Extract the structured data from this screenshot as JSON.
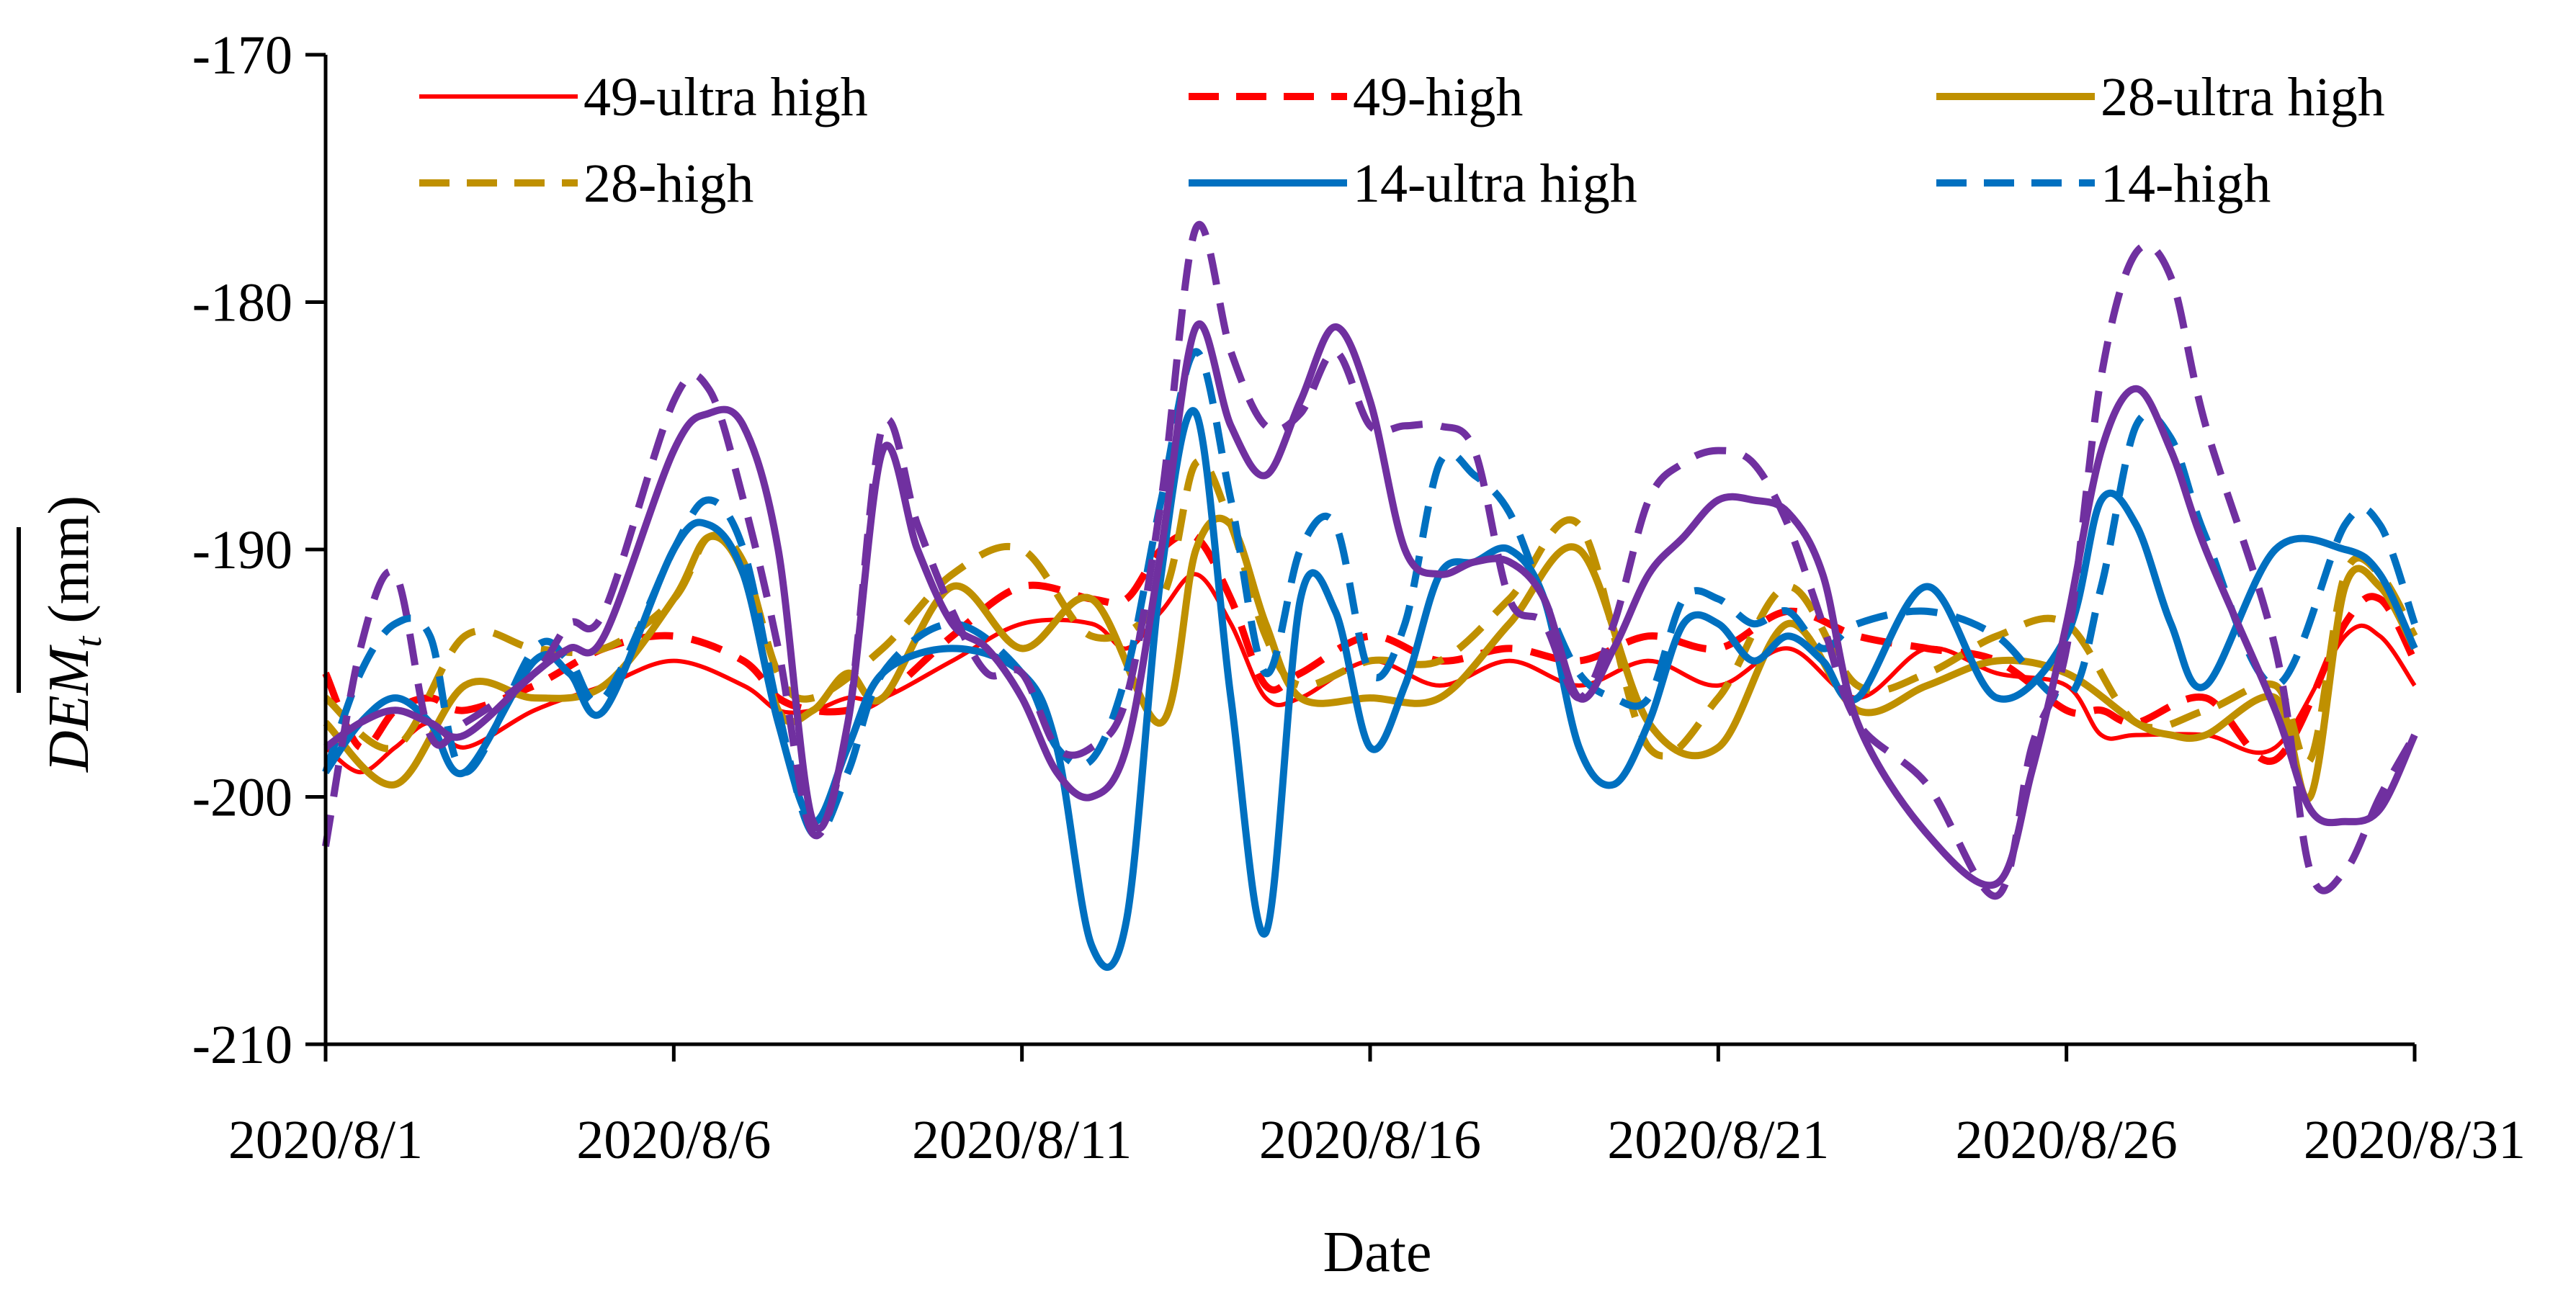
{
  "chart_data": {
    "type": "line",
    "xlabel": "Date",
    "ylabel_main": "DEM",
    "ylabel_sub": "t",
    "ylabel_unit": "(mm)",
    "ylim": [
      -210,
      -170
    ],
    "yticks": [
      -170,
      -180,
      -190,
      -200,
      -210
    ],
    "ytick_labels": [
      "-170",
      "-180",
      "-190",
      "-200",
      "-210"
    ],
    "xlim": [
      0,
      30
    ],
    "xticks": [
      0,
      5,
      10,
      15,
      20,
      25,
      30
    ],
    "xtick_labels": [
      "2020/8/1",
      "2020/8/6",
      "2020/8/11",
      "2020/8/16",
      "2020/8/21",
      "2020/8/26",
      "2020/8/31"
    ],
    "legend_position": "top",
    "series": [
      {
        "name": "49-ultra high",
        "color": "#FF0000",
        "dash": "solid",
        "width": "thin",
        "x": [
          0,
          0.5,
          1,
          1.5,
          2,
          3,
          4,
          5,
          6,
          6.5,
          7,
          7.5,
          8,
          9,
          10,
          11,
          11.5,
          12,
          12.5,
          13,
          13.5,
          14,
          15,
          16,
          17,
          18,
          19,
          20,
          21,
          22,
          23,
          24,
          25,
          25.5,
          26,
          27,
          28,
          29,
          29.5,
          30
        ],
        "values": [
          -198,
          -199,
          -198,
          -197,
          -198,
          -196.5,
          -195.5,
          -194.5,
          -195.5,
          -196.5,
          -196.5,
          -196,
          -196,
          -194.5,
          -193,
          -193,
          -194,
          -192.5,
          -191,
          -193,
          -196,
          -196,
          -194.5,
          -195.5,
          -194.5,
          -195.5,
          -194.5,
          -195.5,
          -194,
          -196,
          -194,
          -195,
          -195.5,
          -197.5,
          -197.5,
          -197.5,
          -198,
          -193.5,
          -193.5,
          -195.5
        ]
      },
      {
        "name": "49-high",
        "color": "#FF0000",
        "dash": "dashed",
        "width": "thick",
        "x": [
          0,
          0.5,
          1,
          1.5,
          2,
          3,
          4,
          5,
          6,
          6.5,
          7,
          7.5,
          8,
          9,
          10,
          11,
          11.5,
          12,
          12.5,
          13,
          13.5,
          14,
          15,
          16,
          17,
          18,
          19,
          20,
          21,
          22,
          23,
          24,
          25,
          25.5,
          26,
          27,
          28,
          29,
          29.5,
          30
        ],
        "values": [
          -195,
          -198,
          -196.5,
          -196,
          -196.5,
          -195.5,
          -194,
          -193.5,
          -194.5,
          -196,
          -196.5,
          -196.5,
          -196,
          -193.5,
          -191.5,
          -192,
          -192,
          -190,
          -189.5,
          -192,
          -195.5,
          -195,
          -193.5,
          -194.5,
          -194,
          -194.5,
          -193.5,
          -194,
          -192.5,
          -193.5,
          -194,
          -194.5,
          -196.5,
          -196.5,
          -197,
          -196,
          -198.5,
          -193,
          -192,
          -194.5
        ]
      },
      {
        "name": "28-ultra high",
        "color": "#BF9000",
        "dash": "solid",
        "width": "thick",
        "x": [
          0,
          1,
          2,
          3,
          4,
          5,
          5.5,
          6,
          6.5,
          7,
          7.5,
          8,
          9,
          10,
          11,
          12,
          12.5,
          13,
          13.5,
          14,
          15,
          16,
          17,
          18,
          19,
          20,
          21,
          22,
          23,
          24,
          25,
          26,
          26.5,
          27,
          28,
          28.5,
          29,
          29.5,
          30
        ],
        "values": [
          -197,
          -199.5,
          -195.5,
          -196,
          -195.5,
          -192,
          -189.5,
          -191,
          -196.5,
          -196.5,
          -195,
          -196,
          -191.5,
          -194,
          -192,
          -197,
          -190,
          -189,
          -193,
          -196,
          -196,
          -196,
          -193,
          -190,
          -197,
          -198,
          -193,
          -196.5,
          -195.5,
          -194.5,
          -195,
          -197,
          -197.5,
          -197.5,
          -196,
          -200,
          -191.5,
          -191.5,
          -194
        ]
      },
      {
        "name": "28-high",
        "color": "#BF9000",
        "dash": "dashed",
        "width": "thick",
        "x": [
          0,
          1,
          2,
          3,
          4,
          5,
          5.5,
          6,
          6.5,
          7,
          8,
          9,
          10,
          11,
          12,
          12.5,
          13,
          13.5,
          14,
          15,
          16,
          17,
          18,
          19,
          20,
          21,
          22,
          23,
          24,
          25,
          26,
          27,
          28,
          28.5,
          29,
          29.5,
          30
        ],
        "values": [
          -196,
          -198,
          -193.5,
          -194,
          -194,
          -192,
          -189.5,
          -190.5,
          -195,
          -196,
          -194,
          -191,
          -190,
          -193.5,
          -192,
          -186.5,
          -189,
          -193.5,
          -195.5,
          -194.5,
          -194.5,
          -192,
          -189,
          -198,
          -196,
          -191.5,
          -195.5,
          -195,
          -193.5,
          -193,
          -197,
          -196.5,
          -195.5,
          -198.5,
          -191,
          -191,
          -193.5
        ]
      },
      {
        "name": "14-ultra high",
        "color": "#0070C0",
        "dash": "solid",
        "width": "thick",
        "x": [
          0,
          0.5,
          1,
          1.5,
          2,
          3,
          3.5,
          4,
          5,
          5.5,
          6,
          6.5,
          7,
          7.5,
          8,
          9,
          10,
          10.5,
          11,
          11.5,
          12,
          12.5,
          13,
          13.5,
          14,
          14.5,
          15,
          15.5,
          16,
          16.5,
          17,
          17.5,
          18,
          18.5,
          19,
          19.5,
          20,
          20.5,
          21,
          21.5,
          22,
          23,
          24,
          25,
          25.5,
          26,
          26.5,
          27,
          28,
          29,
          29.5,
          30
        ],
        "values": [
          -199,
          -197,
          -196,
          -197,
          -199,
          -194.5,
          -195,
          -196.5,
          -190,
          -189,
          -191,
          -197,
          -201,
          -198,
          -195,
          -194,
          -195,
          -198,
          -206,
          -205,
          -191,
          -184.5,
          -196,
          -205.5,
          -192,
          -192.5,
          -198,
          -195.5,
          -191,
          -190.5,
          -190,
          -192,
          -198,
          -199.5,
          -197,
          -193,
          -193,
          -194.5,
          -193.5,
          -194.5,
          -196,
          -191.5,
          -196,
          -193.5,
          -188,
          -189,
          -193,
          -195.5,
          -190,
          -190,
          -191,
          -194
        ]
      },
      {
        "name": "14-high",
        "color": "#0070C0",
        "dash": "dashed",
        "width": "thick",
        "x": [
          0,
          0.5,
          1,
          1.5,
          2,
          3,
          3.5,
          4,
          5,
          5.5,
          6,
          6.5,
          7,
          7.5,
          8,
          9,
          10,
          10.5,
          11,
          11.5,
          12,
          12.5,
          13,
          13.5,
          14,
          14.5,
          15,
          15.5,
          16,
          16.5,
          17,
          17.5,
          18,
          18.5,
          19,
          19.5,
          20,
          20.5,
          21,
          21.5,
          22,
          23,
          24,
          25,
          25.5,
          26,
          26.5,
          27,
          28,
          29,
          29.5,
          30
        ],
        "values": [
          -199,
          -195,
          -193,
          -193.5,
          -199,
          -194,
          -194.5,
          -196,
          -190,
          -188,
          -190,
          -196.5,
          -201.5,
          -199,
          -195,
          -193,
          -195,
          -198,
          -198.5,
          -195,
          -188,
          -182,
          -188,
          -195,
          -190,
          -189,
          -195,
          -193,
          -186.5,
          -187,
          -188.5,
          -192,
          -195,
          -196,
          -196,
          -192,
          -192,
          -193,
          -192.5,
          -194,
          -193,
          -192.5,
          -193.5,
          -196,
          -191.5,
          -185,
          -185.5,
          -189.5,
          -195.5,
          -189,
          -189,
          -193
        ]
      }
    ],
    "extra_series": [
      {
        "name": "",
        "color": "#7030A0",
        "dash": "solid",
        "width": "thick",
        "x": [
          0,
          0.5,
          1,
          1.5,
          2,
          3,
          3.5,
          4,
          5,
          5.5,
          6,
          6.5,
          7,
          7.5,
          8,
          8.5,
          9,
          9.5,
          10,
          10.5,
          11,
          11.5,
          12,
          12.5,
          13,
          13.5,
          14,
          14.5,
          15,
          15.5,
          16,
          16.5,
          17,
          17.5,
          18,
          18.5,
          19,
          19.5,
          20,
          20.5,
          21,
          21.5,
          22,
          23,
          24,
          24.5,
          25,
          25.5,
          26,
          26.5,
          27,
          28,
          28.5,
          29,
          29.5,
          30
        ],
        "values": [
          -198,
          -197,
          -196.5,
          -197,
          -197.5,
          -195,
          -194,
          -193.5,
          -186,
          -184.5,
          -185,
          -190,
          -201,
          -197,
          -186,
          -190,
          -193,
          -194,
          -196,
          -199,
          -200,
          -198,
          -190,
          -181,
          -185,
          -187,
          -184,
          -181,
          -184,
          -190,
          -191,
          -190.5,
          -190.5,
          -192,
          -196,
          -194,
          -191,
          -189.5,
          -188,
          -188,
          -188.5,
          -191,
          -197,
          -201.5,
          -203.5,
          -199,
          -193,
          -186,
          -183.5,
          -186,
          -190,
          -196.5,
          -200.5,
          -201,
          -200.5,
          -197.5
        ]
      },
      {
        "name": "",
        "color": "#7030A0",
        "dash": "dashed",
        "width": "thick",
        "x": [
          0,
          0.5,
          1,
          1.5,
          2,
          3,
          3.5,
          4,
          5,
          5.5,
          6,
          6.5,
          7,
          7.5,
          8,
          8.5,
          9,
          9.5,
          10,
          10.5,
          11,
          11.5,
          12,
          12.5,
          13,
          13.5,
          14,
          14.5,
          15,
          15.5,
          16,
          16.5,
          17,
          17.5,
          18,
          18.5,
          19,
          19.5,
          20,
          20.5,
          21,
          21.5,
          22,
          23,
          24,
          24.5,
          25,
          25.5,
          26,
          26.5,
          27,
          28,
          28.5,
          29,
          29.5,
          30
        ],
        "values": [
          -202,
          -194,
          -191,
          -197.5,
          -197,
          -195,
          -193,
          -192.5,
          -184,
          -183.5,
          -188,
          -194,
          -201.5,
          -197,
          -185,
          -189,
          -192.5,
          -195,
          -195,
          -198,
          -198,
          -196,
          -188,
          -177,
          -182,
          -185,
          -184.5,
          -182,
          -185,
          -185,
          -185,
          -186,
          -192,
          -193,
          -196,
          -193,
          -188,
          -186.5,
          -186,
          -186.5,
          -189,
          -193,
          -197,
          -199.5,
          -204,
          -198,
          -194,
          -183,
          -178,
          -179,
          -185,
          -194,
          -203,
          -203,
          -200,
          -197.5
        ]
      }
    ]
  }
}
